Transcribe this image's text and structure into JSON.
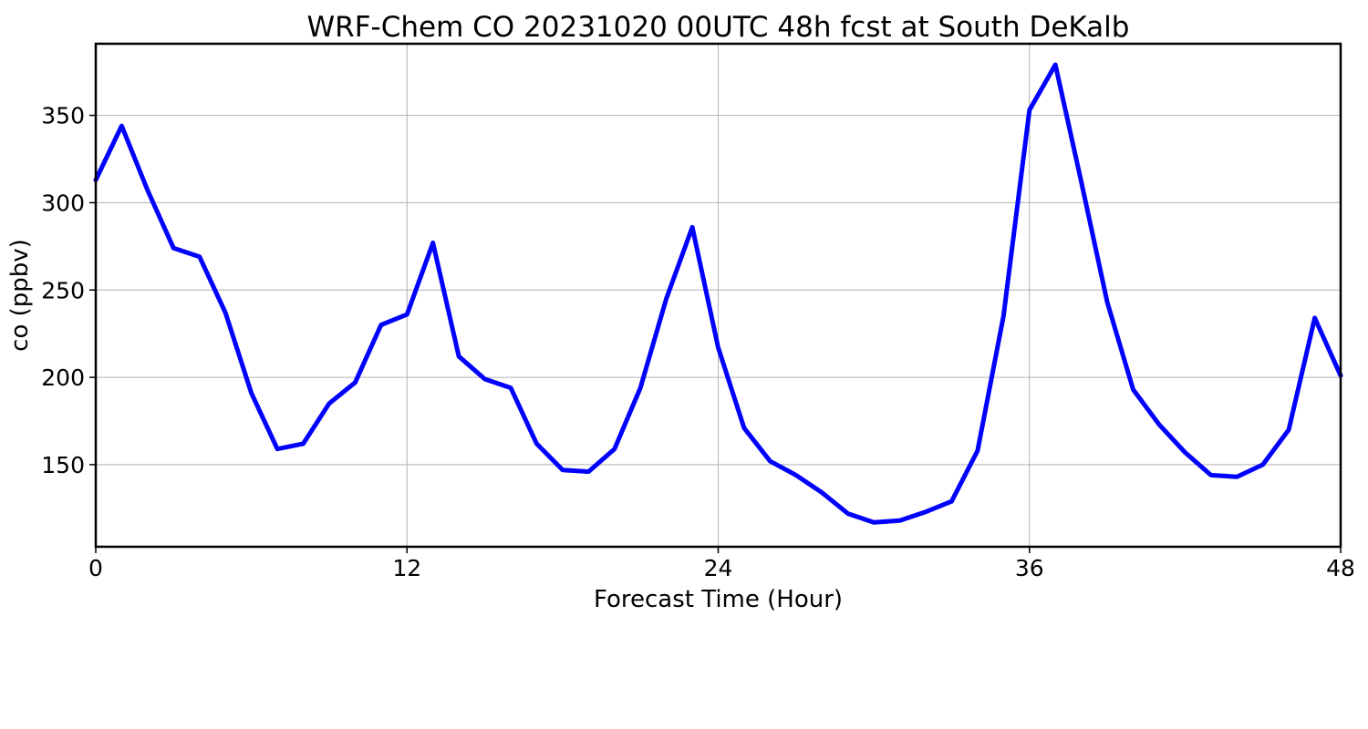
{
  "chart_data": {
    "type": "line",
    "title": "WRF-Chem CO  20231020 00UTC 48h fcst at South DeKalb",
    "xlabel": "Forecast Time (Hour)",
    "ylabel": "co  (ppbv)",
    "xlim": [
      0,
      48
    ],
    "ylim": [
      103,
      391
    ],
    "xticks": [
      0,
      12,
      24,
      36,
      48
    ],
    "yticks": [
      150,
      200,
      250,
      300,
      350
    ],
    "grid": true,
    "legend": "none",
    "series_color": "#0000ff",
    "series": [
      {
        "x": [
          0,
          1,
          2,
          3,
          4,
          5,
          6,
          7,
          8,
          9,
          10,
          11,
          12,
          13,
          14,
          15,
          16,
          17,
          18,
          19,
          20,
          21,
          22,
          23,
          24,
          25,
          26,
          27,
          28,
          29,
          30,
          31,
          32,
          33,
          34,
          35,
          36,
          37,
          38,
          39,
          40,
          41,
          42,
          43,
          44,
          45,
          46,
          47,
          48
        ],
        "values": [
          313,
          344,
          307,
          274,
          269,
          237,
          191,
          159,
          162,
          185,
          197,
          230,
          236,
          277,
          212,
          199,
          194,
          162,
          147,
          146,
          159,
          194,
          245,
          286,
          217,
          171,
          152,
          144,
          134,
          122,
          117,
          118,
          123,
          129,
          158,
          235,
          353,
          379,
          312,
          243,
          193,
          173,
          157,
          144,
          143,
          150,
          170,
          234,
          201
        ]
      }
    ]
  }
}
